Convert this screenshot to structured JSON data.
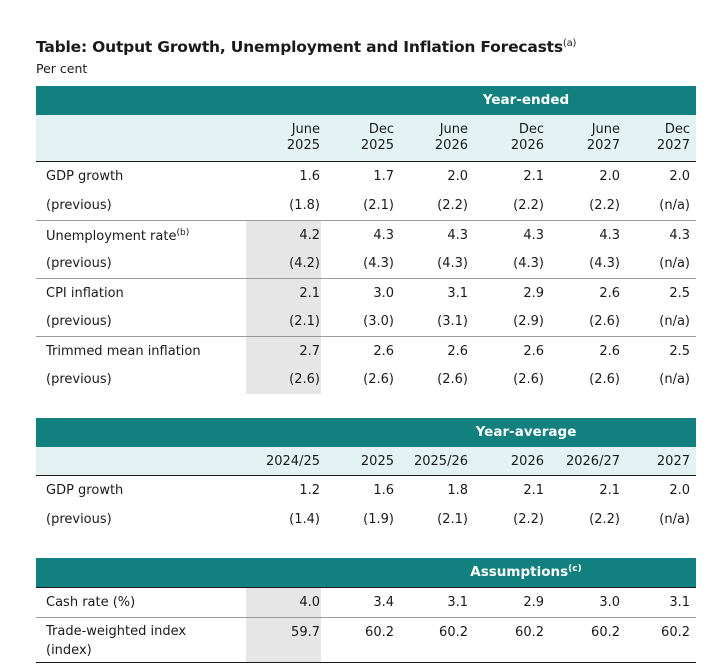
{
  "title": "Table: Output Growth, Unemployment and Inflation Forecasts",
  "title_note": "(a)",
  "unit": "Per cent",
  "year_ended": {
    "band_label": "Year-ended",
    "headers": [
      [
        "June",
        "2025"
      ],
      [
        "Dec",
        "2025"
      ],
      [
        "June",
        "2026"
      ],
      [
        "Dec",
        "2026"
      ],
      [
        "June",
        "2027"
      ],
      [
        "Dec",
        "2027"
      ]
    ],
    "rows": [
      {
        "label": "GDP growth",
        "note": "",
        "values": [
          "1.6",
          "1.7",
          "2.0",
          "2.1",
          "2.0",
          "2.0"
        ]
      },
      {
        "label": "(previous)",
        "note": "",
        "values": [
          "(1.8)",
          "(2.1)",
          "(2.2)",
          "(2.2)",
          "(2.2)",
          "(n/a)"
        ]
      },
      {
        "label": "Unemployment rate",
        "note": "(b)",
        "values": [
          "4.2",
          "4.3",
          "4.3",
          "4.3",
          "4.3",
          "4.3"
        ]
      },
      {
        "label": "(previous)",
        "note": "",
        "values": [
          "(4.2)",
          "(4.3)",
          "(4.3)",
          "(4.3)",
          "(4.3)",
          "(n/a)"
        ]
      },
      {
        "label": "CPI inflation",
        "note": "",
        "values": [
          "2.1",
          "3.0",
          "3.1",
          "2.9",
          "2.6",
          "2.5"
        ]
      },
      {
        "label": "(previous)",
        "note": "",
        "values": [
          "(2.1)",
          "(3.0)",
          "(3.1)",
          "(2.9)",
          "(2.6)",
          "(n/a)"
        ]
      },
      {
        "label": "Trimmed mean inflation",
        "note": "",
        "values": [
          "2.7",
          "2.6",
          "2.6",
          "2.6",
          "2.6",
          "2.5"
        ]
      },
      {
        "label": "(previous)",
        "note": "",
        "values": [
          "(2.6)",
          "(2.6)",
          "(2.6)",
          "(2.6)",
          "(2.6)",
          "(n/a)"
        ]
      }
    ]
  },
  "year_average": {
    "band_label": "Year-average",
    "headers": [
      "2024/25",
      "2025",
      "2025/26",
      "2026",
      "2026/27",
      "2027"
    ],
    "rows": [
      {
        "label": "GDP growth",
        "values": [
          "1.2",
          "1.6",
          "1.8",
          "2.1",
          "2.1",
          "2.0"
        ]
      },
      {
        "label": "(previous)",
        "values": [
          "(1.4)",
          "(1.9)",
          "(2.1)",
          "(2.2)",
          "(2.2)",
          "(n/a)"
        ]
      }
    ]
  },
  "assumptions": {
    "band_label": "Assumptions",
    "band_note": "(c)",
    "rows": [
      {
        "label": "Cash rate (%)",
        "values": [
          "4.0",
          "3.4",
          "3.1",
          "2.9",
          "3.0",
          "3.1"
        ]
      },
      {
        "label": "Trade-weighted index",
        "label_line2": "(index)",
        "values": [
          "59.7",
          "60.2",
          "60.2",
          "60.2",
          "60.2",
          "60.2"
        ]
      }
    ]
  },
  "colors": {
    "band": "#11807f",
    "subheader": "#e3f3f4",
    "shade": "#e6e6e6"
  }
}
